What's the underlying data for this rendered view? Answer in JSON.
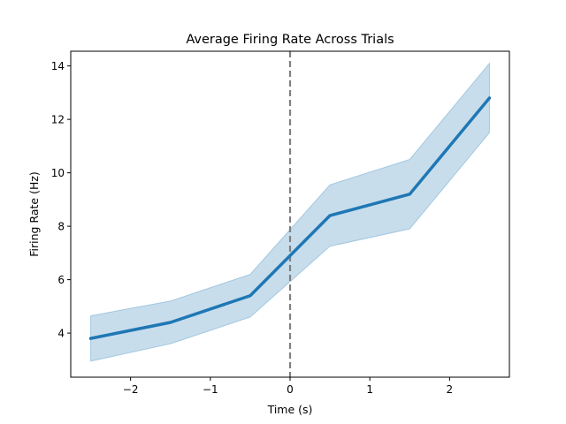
{
  "chart_data": {
    "type": "line",
    "title": "Average Firing Rate Across Trials",
    "xlabel": "Time (s)",
    "ylabel": "Firing Rate (Hz)",
    "xlim": [
      -2.75,
      2.75
    ],
    "ylim": [
      2.35,
      14.55
    ],
    "xticks": [
      -2,
      -1,
      0,
      1,
      2
    ],
    "xtick_labels": [
      "−2",
      "−1",
      "0",
      "1",
      "2"
    ],
    "yticks": [
      4,
      6,
      8,
      10,
      12,
      14
    ],
    "ytick_labels": [
      "4",
      "6",
      "8",
      "10",
      "12",
      "14"
    ],
    "grid": false,
    "legend": "none",
    "x": [
      -2.5,
      -1.5,
      -0.5,
      0.5,
      1.5,
      2.5
    ],
    "series": [
      {
        "values": [
          3.8,
          4.4,
          5.4,
          8.4,
          9.2,
          12.8
        ],
        "band_lower": [
          2.95,
          3.6,
          4.6,
          7.25,
          7.9,
          11.5
        ],
        "band_upper": [
          4.65,
          5.2,
          6.2,
          9.55,
          10.5,
          14.1
        ],
        "color": "#1f77b4",
        "band_color": "#1f77b4"
      }
    ],
    "vline": {
      "x": 0,
      "style": "dashed",
      "color": "#808080"
    }
  }
}
